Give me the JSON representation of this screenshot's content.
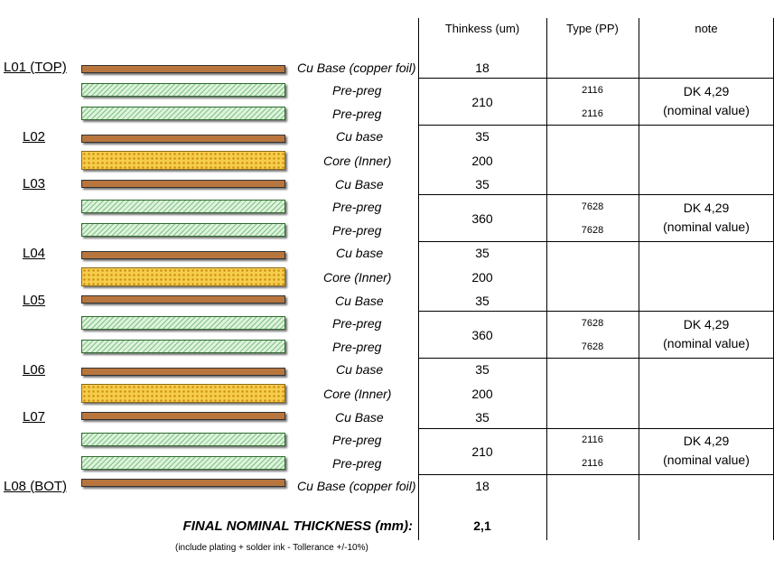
{
  "headers": {
    "thickness": "Thinkess (um)",
    "type": "Type (PP)",
    "note": "note"
  },
  "layer_labels": {
    "l01": "L01 (TOP)",
    "l02": "L02",
    "l03": "L03",
    "l04": "L04",
    "l05": "L05",
    "l06": "L06",
    "l07": "L07",
    "l08": "L08 (BOT)"
  },
  "stack": [
    {
      "material": "Cu Base (copper foil)"
    },
    {
      "material": "Pre-preg",
      "type": "2116"
    },
    {
      "material": "Pre-preg",
      "type": "2116"
    },
    {
      "material": "Cu base"
    },
    {
      "material": "Core (Inner)"
    },
    {
      "material": "Cu Base"
    },
    {
      "material": "Pre-preg",
      "type": "7628"
    },
    {
      "material": "Pre-preg",
      "type": "7628"
    },
    {
      "material": "Cu base"
    },
    {
      "material": "Core (Inner)"
    },
    {
      "material": "Cu Base"
    },
    {
      "material": "Pre-preg",
      "type": "7628"
    },
    {
      "material": "Pre-preg",
      "type": "7628"
    },
    {
      "material": "Cu base"
    },
    {
      "material": "Core (Inner)"
    },
    {
      "material": "Cu Base"
    },
    {
      "material": "Pre-preg",
      "type": "2116"
    },
    {
      "material": "Pre-preg",
      "type": "2116"
    },
    {
      "material": "Cu Base (copper foil)"
    }
  ],
  "thickness": [
    "18",
    "210",
    "35",
    "200",
    "35",
    "360",
    "35",
    "200",
    "35",
    "360",
    "35",
    "200",
    "35",
    "210",
    "18"
  ],
  "notes": {
    "dk": "DK 4,29",
    "nominal": "(nominal value)"
  },
  "final": {
    "label": "FINAL NOMINAL THICKNESS (mm):",
    "value": "2,1",
    "footnote": "(include plating + solder ink - Tollerance +/-10%)"
  }
}
